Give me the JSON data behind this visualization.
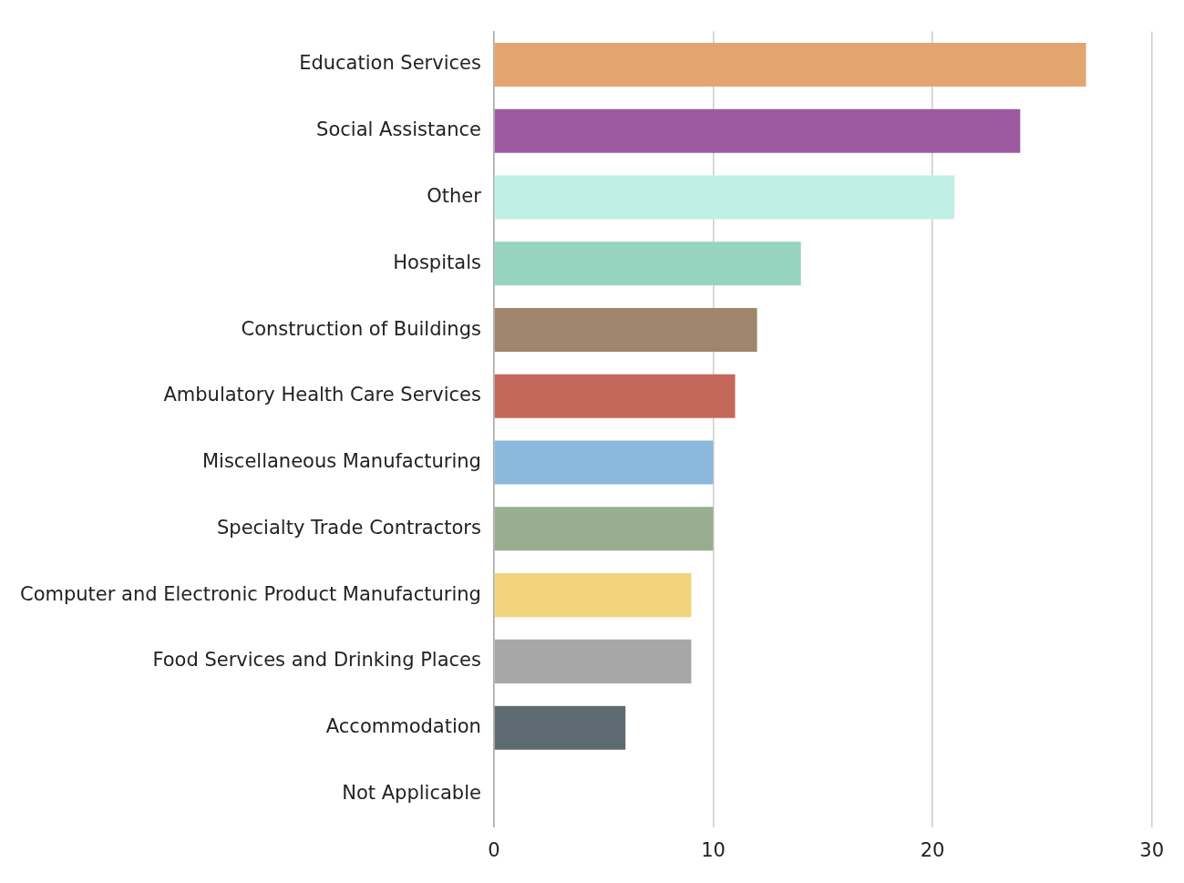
{
  "chart_data": {
    "type": "bar",
    "orientation": "horizontal",
    "categories": [
      "Education Services",
      "Social Assistance",
      "Other",
      "Hospitals",
      "Construction of Buildings",
      "Ambulatory Health Care Services",
      "Miscellaneous Manufacturing",
      "Specialty Trade Contractors",
      "Computer and Electronic Product Manufacturing",
      "Food Services and Drinking Places",
      "Accommodation",
      "Not Applicable"
    ],
    "values": [
      27,
      24,
      21,
      14,
      12,
      11,
      10,
      10,
      9,
      9,
      6,
      0
    ],
    "colors": [
      "#e4a46f",
      "#9b5a9f",
      "#c0f0e5",
      "#97d4c0",
      "#9e856b",
      "#c4685b",
      "#8bb8dd",
      "#99ae8f",
      "#f2d47d",
      "#a7a7a7",
      "#5f6b73",
      "#a7a7a7"
    ],
    "xlim": [
      0,
      30
    ],
    "xticks": [
      0,
      10,
      20,
      30
    ],
    "grid": "x",
    "legend": false
  }
}
